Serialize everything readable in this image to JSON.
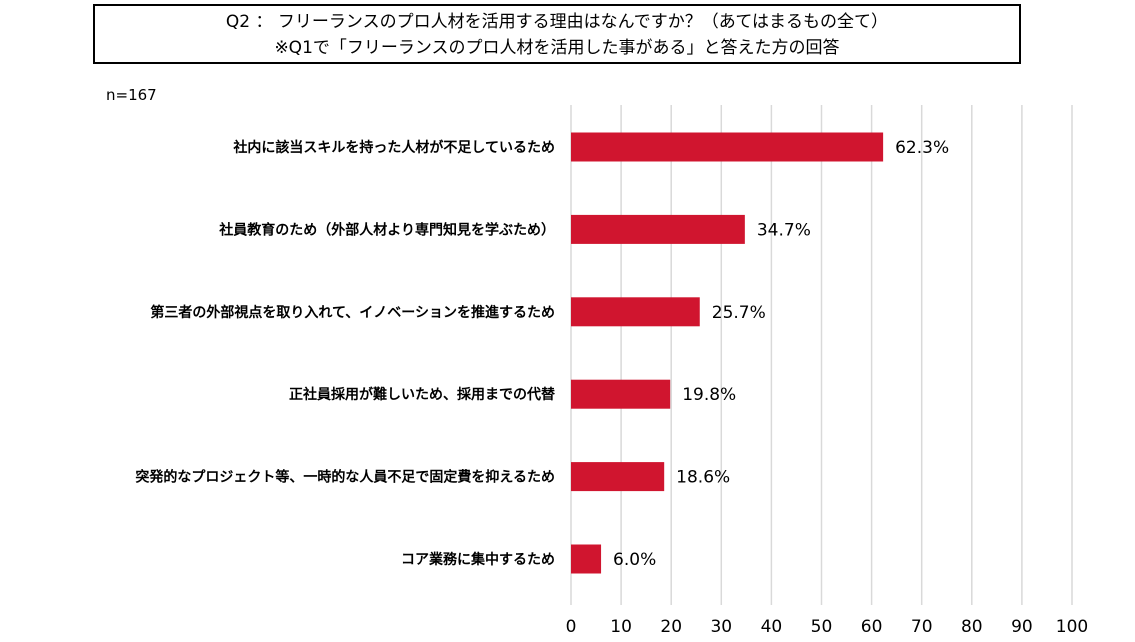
{
  "title": {
    "line1": "Q2 ： フリーランスのプロ人材を活用する理由はなんですか？（あてはまるもの全て）",
    "line2": "※Q1で「フリーランスのプロ人材を活用した事がある」と答えた方の回答"
  },
  "sample_size": "n=167",
  "chart_data": {
    "type": "bar",
    "orientation": "horizontal",
    "categories": [
      "社内に該当スキルを持った人材が不足しているため",
      "社員教育のため（外部人材より専門知見を学ぶため）",
      "第三者の外部視点を取り入れて、イノベーションを推進するため",
      "正社員採用が難しいため、採用までの代替",
      "突発的なプロジェクト等、一時的な人員不足で固定費を抑えるため",
      "コア業務に集中するため"
    ],
    "values": [
      62.3,
      34.7,
      25.7,
      19.8,
      18.6,
      6.0
    ],
    "value_labels": [
      "62.3%",
      "34.7%",
      "25.7%",
      "19.8%",
      "18.6%",
      "6.0%"
    ],
    "xlim": [
      0,
      100
    ],
    "xticks": [
      "0",
      "10",
      "20",
      "30",
      "40",
      "50",
      "60",
      "70",
      "80",
      "90",
      "100"
    ],
    "grid": "vertical",
    "bar_color": "#d0152f",
    "grid_color": "#d9d9d9"
  }
}
